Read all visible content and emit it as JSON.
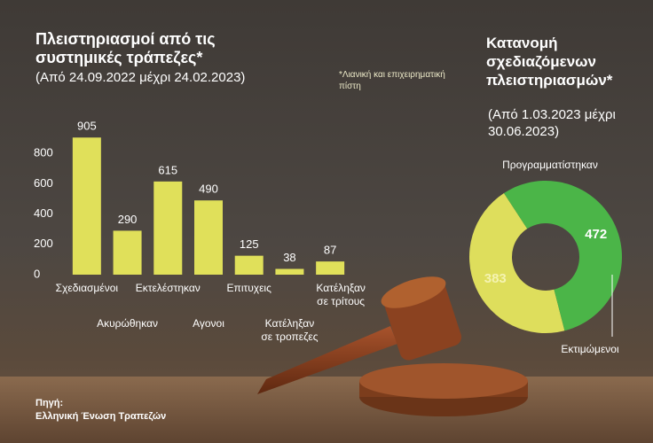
{
  "chart_data": [
    {
      "type": "bar",
      "title": "Πλειστηριασμοί από τις συστημικές τράπεζες*",
      "subtitle": "(Από 24.09.2022 μέχρι 24.02.2023)",
      "note": "*Λιανική και επιχειρηματική πίστη",
      "categories": [
        "Σχεδιασμένοι",
        "Ακυρώθηκαν",
        "Εκτελέστηκαν",
        "Αγονοι",
        "Επιτυχεις",
        "Κατέληξαν σε τροπεζες",
        "Κατέληξαν σε τρίτους"
      ],
      "values": [
        905,
        290,
        615,
        490,
        125,
        38,
        87
      ],
      "color": "#e0e05a",
      "ylim": [
        0,
        1000
      ],
      "yticks": [
        0,
        200,
        400,
        600,
        800
      ],
      "source_label": "Πηγή:",
      "source": "Ελληνική Ένωση Τραπεζών"
    },
    {
      "type": "donut",
      "title": "Κατανομή σχεδιαζόμενων πλειστηριασμών*",
      "subtitle": "(Από 1.03.2023 μέχρι 30.06.2023)",
      "categories": [
        "Προγραμματίστηκαν",
        "Εκτιμώμενοι"
      ],
      "values": [
        383,
        472
      ],
      "colors": [
        "#dede5c",
        "#4bb548"
      ]
    }
  ]
}
